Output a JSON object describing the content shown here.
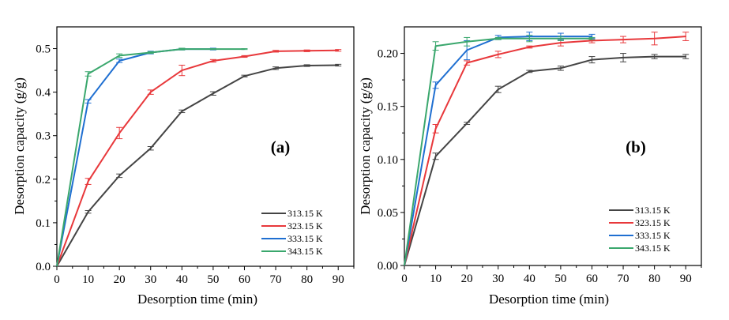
{
  "chart_data": [
    {
      "type": "line",
      "panel_label": "(a)",
      "xlabel": "Desorption time (min)",
      "ylabel": "Desorption capacity (g/g)",
      "xlim": [
        0,
        95
      ],
      "ylim": [
        0,
        0.55
      ],
      "xticks": [
        0,
        10,
        20,
        30,
        40,
        50,
        60,
        70,
        80,
        90
      ],
      "xtick_labels": [
        "0",
        "10",
        "20",
        "30",
        "40",
        "50",
        "60",
        "70",
        "80",
        "90"
      ],
      "yticks": [
        0.0,
        0.1,
        0.2,
        0.3,
        0.4,
        0.5
      ],
      "ytick_labels": [
        "0.0",
        "0.1",
        "0.2",
        "0.3",
        "0.4",
        "0.5"
      ],
      "grid": false,
      "legend_position": "bottom-right",
      "series": [
        {
          "name": "313.15 K",
          "color": "#444444",
          "x": [
            0,
            10,
            20,
            30,
            40,
            50,
            60,
            70,
            80,
            90
          ],
          "y": [
            0,
            0.125,
            0.208,
            0.271,
            0.356,
            0.397,
            0.437,
            0.455,
            0.461,
            0.462
          ],
          "err": [
            0,
            0.003,
            0.004,
            0.004,
            0.003,
            0.004,
            0.002,
            0.003,
            0.002,
            0.002
          ]
        },
        {
          "name": "323.15 K",
          "color": "#e8383b",
          "x": [
            0,
            10,
            20,
            30,
            40,
            50,
            60,
            70,
            80,
            90
          ],
          "y": [
            0,
            0.195,
            0.306,
            0.4,
            0.45,
            0.472,
            0.482,
            0.494,
            0.495,
            0.496
          ],
          "err": [
            0,
            0.007,
            0.013,
            0.005,
            0.012,
            0.003,
            0.002,
            0.002,
            0.002,
            0.002
          ]
        },
        {
          "name": "333.15 K",
          "color": "#1f6fd1",
          "x": [
            0,
            10,
            20,
            30,
            40,
            50
          ],
          "y": [
            0,
            0.379,
            0.472,
            0.491,
            0.499,
            0.499
          ],
          "err": [
            0,
            0.004,
            0.004,
            0.003,
            0.002,
            0.002
          ]
        },
        {
          "name": "343.15 K",
          "color": "#3aa76d",
          "x": [
            0,
            10,
            20,
            30,
            40,
            50,
            60
          ],
          "y": [
            0,
            0.442,
            0.484,
            0.491,
            0.499,
            0.499,
            0.499
          ],
          "err": [
            0,
            0.005,
            0.004,
            0.002,
            0.002,
            0.001,
            0.001
          ]
        }
      ]
    },
    {
      "type": "line",
      "panel_label": "(b)",
      "xlabel": "Desorption time (min)",
      "ylabel": "Desorption capacity (g/g)",
      "xlim": [
        0,
        95
      ],
      "ylim": [
        0,
        0.225
      ],
      "xticks": [
        0,
        10,
        20,
        30,
        40,
        50,
        60,
        70,
        80,
        90
      ],
      "xtick_labels": [
        "0",
        "10",
        "20",
        "30",
        "40",
        "50",
        "60",
        "70",
        "80",
        "90"
      ],
      "yticks": [
        0.0,
        0.05,
        0.1,
        0.15,
        0.2
      ],
      "ytick_labels": [
        "0.00",
        "0.05",
        "0.10",
        "0.15",
        "0.20"
      ],
      "grid": false,
      "legend_position": "bottom-right",
      "series": [
        {
          "name": "313.15 K",
          "color": "#444444",
          "x": [
            0,
            10,
            20,
            30,
            40,
            50,
            60,
            70,
            80,
            90
          ],
          "y": [
            0,
            0.103,
            0.134,
            0.166,
            0.183,
            0.186,
            0.194,
            0.196,
            0.197,
            0.197
          ],
          "err": [
            0,
            0.003,
            0.001,
            0.003,
            0.001,
            0.002,
            0.003,
            0.004,
            0.002,
            0.002
          ]
        },
        {
          "name": "323.15 K",
          "color": "#e8383b",
          "x": [
            0,
            10,
            20,
            30,
            40,
            50,
            60,
            70,
            80,
            90
          ],
          "y": [
            0,
            0.129,
            0.191,
            0.199,
            0.206,
            0.21,
            0.212,
            0.213,
            0.214,
            0.216
          ],
          "err": [
            0,
            0.004,
            0.002,
            0.003,
            0.001,
            0.003,
            0.002,
            0.003,
            0.006,
            0.004
          ]
        },
        {
          "name": "333.15 K",
          "color": "#1f6fd1",
          "x": [
            0,
            10,
            20,
            30,
            40,
            50,
            60
          ],
          "y": [
            0,
            0.17,
            0.203,
            0.215,
            0.216,
            0.216,
            0.216
          ],
          "err": [
            0,
            0.003,
            0.009,
            0.002,
            0.004,
            0.003,
            0.002
          ]
        },
        {
          "name": "343.15 K",
          "color": "#3aa76d",
          "x": [
            0,
            10,
            20,
            30,
            40,
            50,
            60
          ],
          "y": [
            0,
            0.207,
            0.211,
            0.214,
            0.214,
            0.214,
            0.214
          ],
          "err": [
            0,
            0.004,
            0.004,
            0.001,
            0.003,
            0.002,
            0.001
          ]
        }
      ]
    }
  ]
}
